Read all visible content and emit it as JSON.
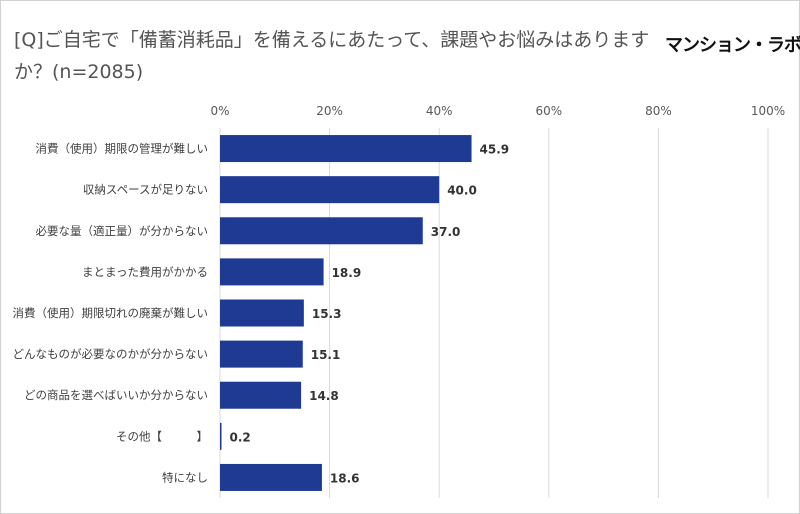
{
  "title": "[Q]ご自宅で「備蓄消耗品」を備えるにあたって、課題やお悩みはありますか？(n=2085)",
  "logo": "マンション・ラボ",
  "chart_data": {
    "type": "bar",
    "orientation": "horizontal",
    "categories": [
      "消費（使用）期限の管理が難しい",
      "収納スペースが足りない",
      "必要な量（適正量）が分からない",
      "まとまった費用がかかる",
      "消費（使用）期限切れの廃棄が難しい",
      "どんなものが必要なのかが分からない",
      "どの商品を選べばいいか分からない",
      "その他【　　　】",
      "特になし"
    ],
    "values": [
      45.9,
      40.0,
      37.0,
      18.9,
      15.3,
      15.1,
      14.8,
      0.2,
      18.6
    ],
    "value_labels": [
      "45.9",
      "40.0",
      "37.0",
      "18.9",
      "15.3",
      "15.1",
      "14.8",
      "0.2",
      "18.6"
    ],
    "xlim": [
      0,
      100
    ],
    "xticks": [
      0,
      20,
      40,
      60,
      80,
      100
    ],
    "xtick_labels": [
      "0%",
      "20%",
      "40%",
      "60%",
      "80%",
      "100%"
    ],
    "axis_position": "top",
    "grid": true,
    "bar_color": "#1f3a93",
    "grid_color": "#d9d9d9"
  }
}
